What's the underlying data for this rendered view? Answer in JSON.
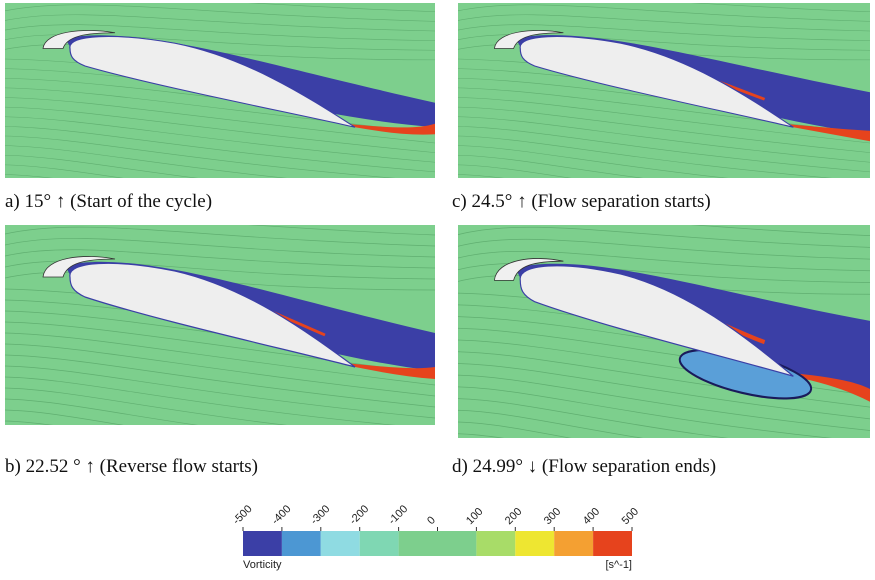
{
  "panels": [
    {
      "caption": "a) 15° ↑ (Start of the cycle)"
    },
    {
      "caption": "c) 24.5° ↑ (Flow separation starts)"
    },
    {
      "caption": "b) 22.52 ° ↑ (Reverse flow starts)"
    },
    {
      "caption": "d) 24.99° ↓ (Flow separation ends)"
    }
  ],
  "colorbar": {
    "label": "Vorticity",
    "unit": "[s^-1]",
    "ticks": [
      -500,
      -400,
      -300,
      -200,
      -100,
      0,
      100,
      200,
      300,
      400,
      500
    ],
    "colors": [
      "#3b3fa6",
      "#4c97d3",
      "#8fdbe2",
      "#7fd7b3",
      "#7dcf8d",
      "#7dcf8d",
      "#a8dc68",
      "#eee631",
      "#f4a032",
      "#e6431d"
    ]
  }
}
